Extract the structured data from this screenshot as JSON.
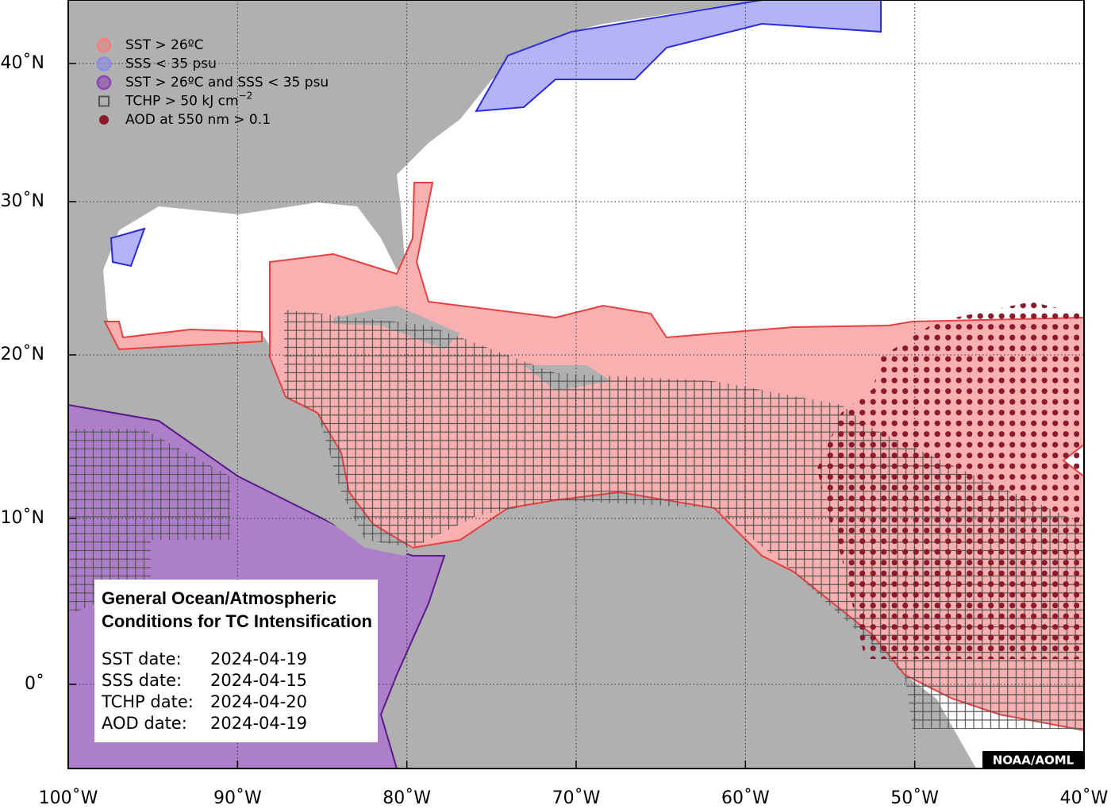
{
  "legend": {
    "items": [
      {
        "label": "SST > 26ºC",
        "color": "#f08080"
      },
      {
        "label": "SSS < 35 psu",
        "color": "#8a8ae8"
      },
      {
        "label": "SST > 26ºC and SSS < 35 psu",
        "color": "#8e44ad"
      },
      {
        "label": "TCHP > 50 kJ cm",
        "superscript": "−2",
        "color": "#555555"
      },
      {
        "label": "AOD at 550 nm > 0.1",
        "color": "#8b1a2b"
      }
    ]
  },
  "info_box": {
    "title": [
      "General Ocean/Atmospheric",
      "Conditions for TC Intensification"
    ],
    "dates": [
      {
        "label": "SST date:",
        "value": "2024-04-19"
      },
      {
        "label": "SSS date:",
        "value": "2024-04-15"
      },
      {
        "label": "TCHP date:",
        "value": "2024-04-20"
      },
      {
        "label": "AOD date:",
        "value": "2024-04-19"
      }
    ]
  },
  "credit": "NOAA/AOML",
  "axes": {
    "x_ticks": [
      {
        "value": -100,
        "label": "100˚W"
      },
      {
        "value": -90,
        "label": "90˚W"
      },
      {
        "value": -80,
        "label": "80˚W"
      },
      {
        "value": -70,
        "label": "70˚W"
      },
      {
        "value": -60,
        "label": "60˚W"
      },
      {
        "value": -50,
        "label": "50˚W"
      },
      {
        "value": -40,
        "label": "40˚W"
      }
    ],
    "y_ticks": [
      {
        "value": 40,
        "label": "40˚N"
      },
      {
        "value": 30,
        "label": "30˚N"
      },
      {
        "value": 20,
        "label": "20˚N"
      },
      {
        "value": 10,
        "label": "10˚N"
      },
      {
        "value": 0,
        "label": "0˚"
      }
    ]
  }
}
